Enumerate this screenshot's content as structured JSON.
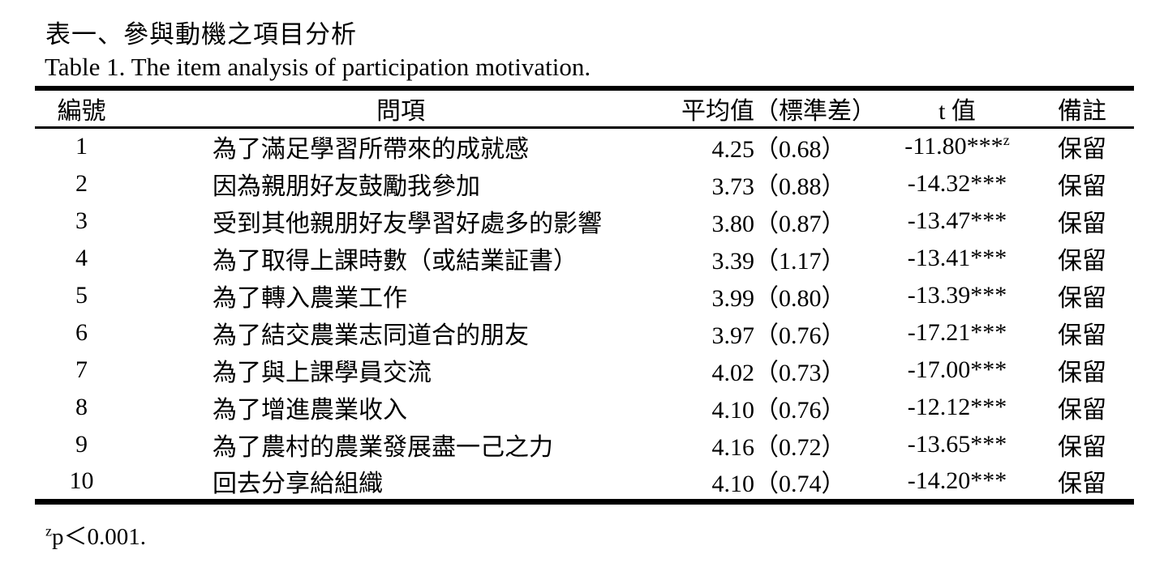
{
  "page": {
    "title_zh": "表一、參與動機之項目分析",
    "title_en": "Table 1. The item analysis of participation motivation."
  },
  "table": {
    "headers": {
      "id": "編號",
      "item": "問項",
      "mean_sd": "平均值（標準差）",
      "t": "t 值",
      "note": "備註"
    },
    "rows": [
      {
        "id": "1",
        "item": "為了滿足學習所帶來的成就感",
        "mean_sd": "4.25（0.68）",
        "t": "-11.80***",
        "t_sup": "z",
        "note": "保留"
      },
      {
        "id": "2",
        "item": "因為親朋好友鼓勵我參加",
        "mean_sd": "3.73（0.88）",
        "t": "-14.32***",
        "t_sup": "",
        "note": "保留"
      },
      {
        "id": "3",
        "item": "受到其他親朋好友學習好處多的影響",
        "mean_sd": "3.80（0.87）",
        "t": "-13.47***",
        "t_sup": "",
        "note": "保留"
      },
      {
        "id": "4",
        "item": "為了取得上課時數（或結業証書）",
        "mean_sd": "3.39（1.17）",
        "t": "-13.41***",
        "t_sup": "",
        "note": "保留"
      },
      {
        "id": "5",
        "item": "為了轉入農業工作",
        "mean_sd": "3.99（0.80）",
        "t": "-13.39***",
        "t_sup": "",
        "note": "保留"
      },
      {
        "id": "6",
        "item": "為了結交農業志同道合的朋友",
        "mean_sd": "3.97（0.76）",
        "t": "-17.21***",
        "t_sup": "",
        "note": "保留"
      },
      {
        "id": "7",
        "item": "為了與上課學員交流",
        "mean_sd": "4.02（0.73）",
        "t": "-17.00***",
        "t_sup": "",
        "note": "保留"
      },
      {
        "id": "8",
        "item": "為了增進農業收入",
        "mean_sd": "4.10（0.76）",
        "t": "-12.12***",
        "t_sup": "",
        "note": "保留"
      },
      {
        "id": "9",
        "item": "為了農村的農業發展盡一己之力",
        "mean_sd": "4.16（0.72）",
        "t": "-13.65***",
        "t_sup": "",
        "note": "保留"
      },
      {
        "id": "10",
        "item": "回去分享給組織",
        "mean_sd": "4.10（0.74）",
        "t": "-14.20***",
        "t_sup": "",
        "note": "保留"
      }
    ],
    "footnote": {
      "sup": "z",
      "text": "p＜0.001."
    }
  }
}
